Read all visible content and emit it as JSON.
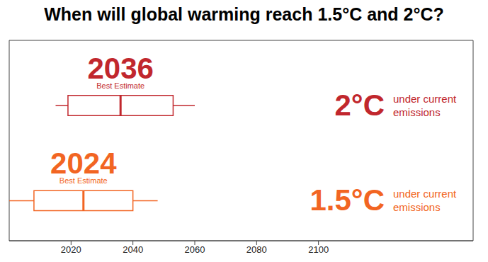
{
  "chart_data": {
    "type": "boxplot",
    "title": "When will global warming reach 1.5°C and 2°C?",
    "series": [
      {
        "name": "2°C",
        "annotation": "under current emissions",
        "color": "#c1272d",
        "whisker_low": 2015,
        "q1": 2019,
        "median": 2036,
        "q3": 2053,
        "whisker_high": 2060,
        "median_label": "Best Estimate"
      },
      {
        "name": "1.5°C",
        "annotation": "under current emissions",
        "color": "#f26522",
        "whisker_low": 2000,
        "q1": 2008,
        "median": 2024,
        "q3": 2040,
        "whisker_high": 2048,
        "median_label": "Best Estimate"
      }
    ],
    "xlim": [
      2000,
      2150
    ],
    "xticks": [
      2020,
      2040,
      2060,
      2080,
      2100
    ]
  }
}
